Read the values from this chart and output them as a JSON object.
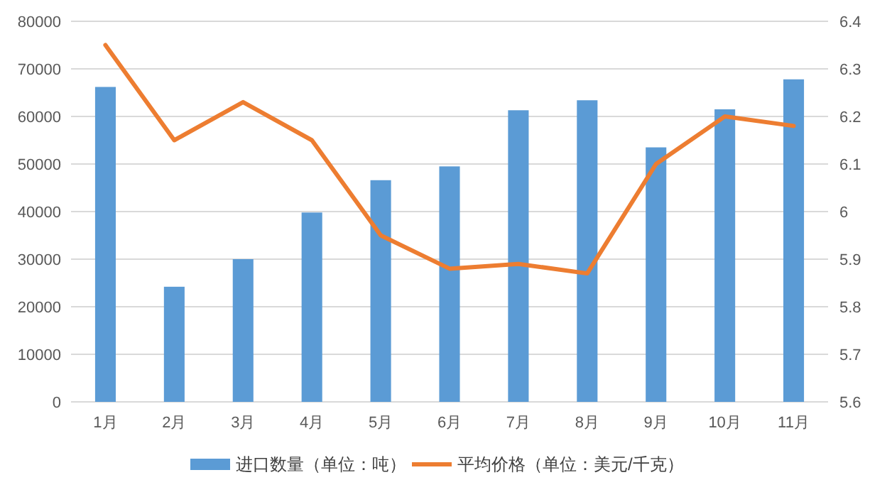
{
  "chart_data": {
    "type": "bar",
    "categories": [
      "1月",
      "2月",
      "3月",
      "4月",
      "5月",
      "6月",
      "7月",
      "8月",
      "9月",
      "10月",
      "11月"
    ],
    "series": [
      {
        "name": "进口数量（单位：吨）",
        "color": "#5b9bd5",
        "values": [
          66200,
          24200,
          30000,
          39800,
          46600,
          49500,
          61300,
          63400,
          53500,
          61500,
          67800
        ]
      },
      {
        "name": "平均价格（单位：美元/千克）",
        "color": "#ed7d31",
        "type": "line",
        "axis": "y2",
        "values": [
          6.35,
          6.15,
          6.23,
          6.15,
          5.95,
          5.88,
          5.89,
          5.87,
          6.1,
          6.2,
          6.18
        ]
      }
    ],
    "ylim": [
      0,
      80000
    ],
    "yticks": [
      0,
      10000,
      20000,
      30000,
      40000,
      50000,
      60000,
      70000,
      80000
    ],
    "y2lim": [
      5.6,
      6.4
    ],
    "y2ticks": [
      5.6,
      5.7,
      5.8,
      5.9,
      6,
      6.1,
      6.2,
      6.3,
      6.4
    ],
    "grid": "y",
    "legend": "bottom",
    "marker": "none"
  }
}
